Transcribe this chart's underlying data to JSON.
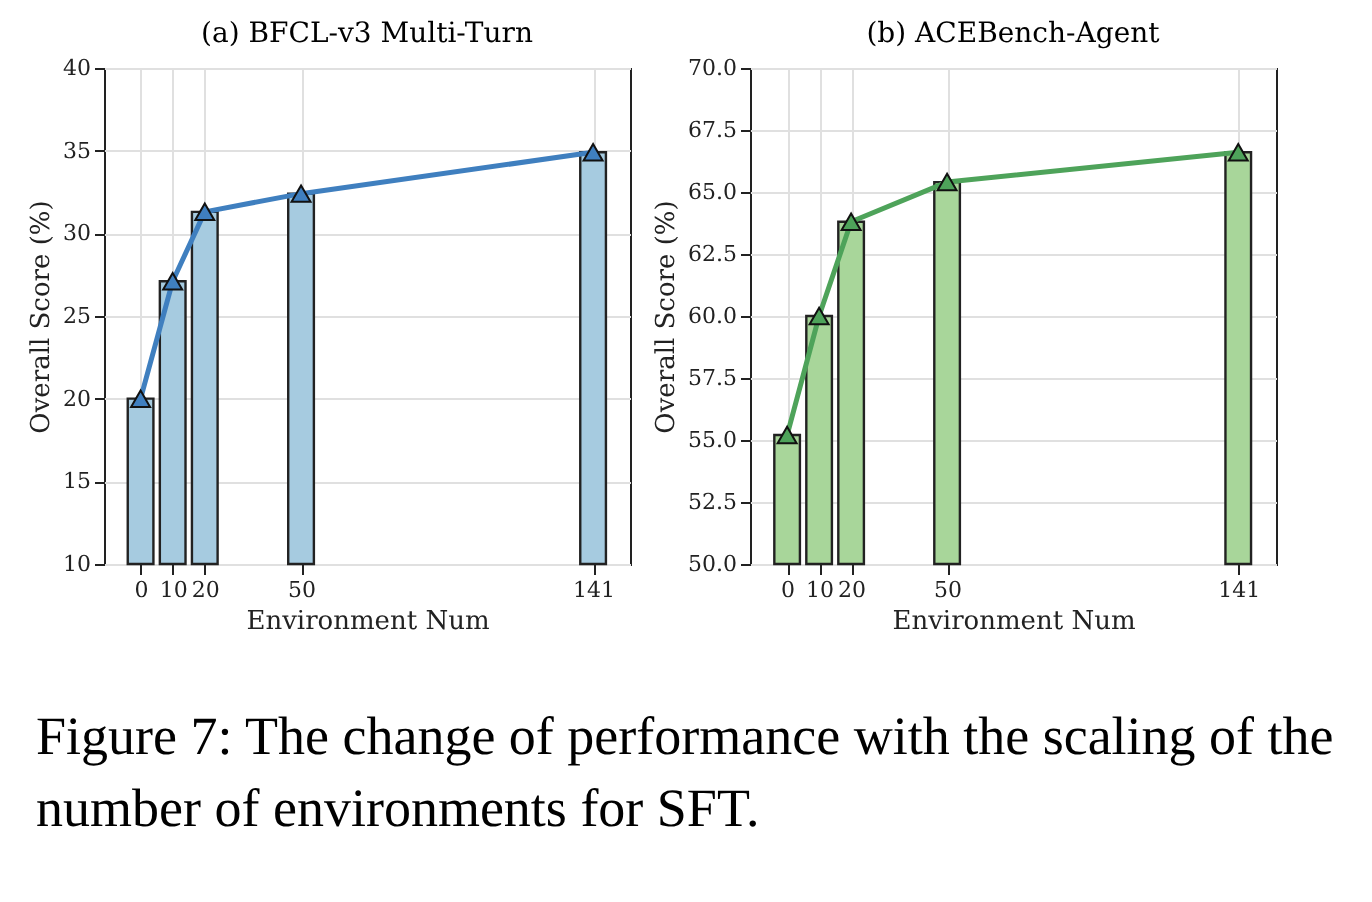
{
  "chart_data": [
    {
      "type": "bar",
      "title": "(a) BFCL-v3 Multi-Turn",
      "xlabel": "Environment Num",
      "ylabel": "Overall Score (%)",
      "x": [
        0,
        10,
        20,
        50,
        141
      ],
      "series": [
        {
          "color": "#a6cbe0",
          "values": [
            20.0,
            27.1,
            31.3,
            32.4,
            34.9
          ]
        },
        {
          "type": "line",
          "color": "#3f7fbf",
          "marker": "triangle",
          "values": [
            20.0,
            27.1,
            31.3,
            32.4,
            34.9
          ]
        }
      ],
      "xlim": [
        -11.4,
        152.5
      ],
      "xticks": [
        0,
        10,
        20,
        50,
        141
      ],
      "ylim": [
        10,
        40
      ],
      "yticks": [
        10,
        15,
        20,
        25,
        30,
        35,
        40
      ],
      "grid": true,
      "annotations": [
        "Figure 7: The change of performance with the scaling of the number of environments for SFT."
      ]
    },
    {
      "type": "bar",
      "title": "(b) ACEBench-Agent",
      "xlabel": "Environment Num",
      "ylabel": "Overall Score (%)",
      "x": [
        0,
        10,
        20,
        50,
        141
      ],
      "series": [
        {
          "color": "#a8d69a",
          "values": [
            55.2,
            60.0,
            63.8,
            65.4,
            66.6
          ]
        },
        {
          "type": "line",
          "color": "#4ea35a",
          "marker": "triangle",
          "values": [
            55.2,
            60.0,
            63.8,
            65.4,
            66.6
          ]
        }
      ],
      "xlim": [
        -11.6,
        152.8
      ],
      "xticks": [
        0,
        10,
        20,
        50,
        141
      ],
      "ylim": [
        50,
        70
      ],
      "yticks": [
        {
          "value": 50,
          "label": "50.0"
        },
        52.5,
        {
          "value": 55,
          "label": "55.0"
        },
        57.5,
        {
          "value": 60,
          "label": "60.0"
        },
        62.5,
        {
          "value": 65,
          "label": "65.0"
        },
        67.5,
        {
          "value": 70,
          "label": "70.0"
        }
      ],
      "grid": true
    }
  ]
}
